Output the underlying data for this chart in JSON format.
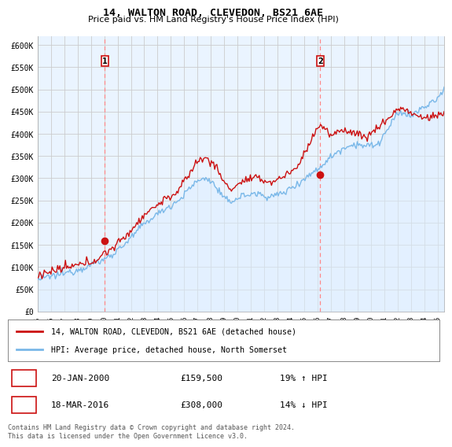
{
  "title": "14, WALTON ROAD, CLEVEDON, BS21 6AE",
  "subtitle": "Price paid vs. HM Land Registry's House Price Index (HPI)",
  "legend_line1": "14, WALTON ROAD, CLEVEDON, BS21 6AE (detached house)",
  "legend_line2": "HPI: Average price, detached house, North Somerset",
  "footnote": "Contains HM Land Registry data © Crown copyright and database right 2024.\nThis data is licensed under the Open Government Licence v3.0.",
  "marker1_date": "20-JAN-2000",
  "marker1_price": "£159,500",
  "marker1_hpi": "19% ↑ HPI",
  "marker2_date": "18-MAR-2016",
  "marker2_price": "£308,000",
  "marker2_hpi": "14% ↓ HPI",
  "hpi_color": "#7ab8e8",
  "hpi_fill_color": "#ddeeff",
  "price_color": "#cc1111",
  "marker_vline_color": "#ff8888",
  "background_color": "#ffffff",
  "plot_bg_color": "#eaf4ff",
  "grid_color": "#cccccc",
  "ylim": [
    0,
    620000
  ],
  "yticks": [
    0,
    50000,
    100000,
    150000,
    200000,
    250000,
    300000,
    350000,
    400000,
    450000,
    500000,
    550000,
    600000
  ],
  "ytick_labels": [
    "£0",
    "£50K",
    "£100K",
    "£150K",
    "£200K",
    "£250K",
    "£300K",
    "£350K",
    "£400K",
    "£450K",
    "£500K",
    "£550K",
    "£600K"
  ],
  "xlim_start": 1995.0,
  "xlim_end": 2025.5,
  "xtick_years": [
    1995,
    1996,
    1997,
    1998,
    1999,
    2000,
    2001,
    2002,
    2003,
    2004,
    2005,
    2006,
    2007,
    2008,
    2009,
    2010,
    2011,
    2012,
    2013,
    2014,
    2015,
    2016,
    2017,
    2018,
    2019,
    2020,
    2021,
    2022,
    2023,
    2024,
    2025
  ],
  "sale1_x": 2000.05,
  "sale1_y": 159500,
  "sale2_x": 2016.21,
  "sale2_y": 308000
}
